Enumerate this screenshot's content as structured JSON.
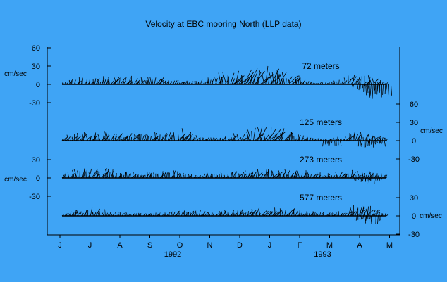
{
  "chart_data": {
    "type": "stick-plot",
    "title": "Velocity at EBC mooring North (LLP data)",
    "colors": {
      "background": "#3fa4f5",
      "ink": "#000000"
    },
    "x_months": [
      "J",
      "J",
      "A",
      "S",
      "O",
      "N",
      "D",
      "J",
      "F",
      "M",
      "A",
      "M"
    ],
    "year_labels": [
      {
        "text": "1992",
        "under_month_index": 4
      },
      {
        "text": "1993",
        "under_month_index": 9
      }
    ],
    "unit_label": "cm/sec",
    "series": [
      {
        "name": "72 meters",
        "axis_side": "left",
        "ticks": [
          60,
          30,
          0,
          -30
        ],
        "right_ticks": [],
        "envelope_cm_s": [
          5,
          10,
          14,
          12,
          14,
          16,
          13,
          12,
          18,
          8,
          6,
          6,
          10,
          18,
          22,
          26,
          28,
          30,
          30,
          20,
          10,
          5,
          4,
          8,
          15,
          18,
          14,
          4
        ],
        "southward_events": [
          {
            "month_pos": 10.0,
            "peak_cm_s": -10
          },
          {
            "month_pos": 10.4,
            "peak_cm_s": -24
          },
          {
            "month_pos": 10.75,
            "peak_cm_s": -22
          }
        ]
      },
      {
        "name": "125 meters",
        "axis_side": "right",
        "ticks": [],
        "right_ticks": [
          60,
          30,
          0,
          -30
        ],
        "envelope_cm_s": [
          6,
          12,
          16,
          14,
          15,
          15,
          12,
          10,
          14,
          16,
          22,
          10,
          6,
          6,
          10,
          14,
          20,
          25,
          22,
          15,
          8,
          4,
          3,
          6,
          12,
          14,
          10,
          4
        ],
        "southward_events": [
          {
            "month_pos": 9.05,
            "peak_cm_s": -10
          },
          {
            "month_pos": 10.25,
            "peak_cm_s": -12
          },
          {
            "month_pos": 10.55,
            "peak_cm_s": -10
          }
        ]
      },
      {
        "name": "273 meters",
        "axis_side": "left",
        "ticks": [
          30,
          0,
          -30
        ],
        "right_ticks": [],
        "envelope_cm_s": [
          6,
          14,
          18,
          16,
          14,
          12,
          10,
          10,
          12,
          12,
          10,
          8,
          8,
          8,
          10,
          12,
          14,
          16,
          16,
          14,
          12,
          10,
          8,
          10,
          14,
          12,
          10,
          5
        ],
        "southward_events": [
          {
            "month_pos": 10.1,
            "peak_cm_s": -8
          },
          {
            "month_pos": 10.45,
            "peak_cm_s": -10
          }
        ]
      },
      {
        "name": "577 meters",
        "axis_side": "right",
        "ticks": [],
        "right_ticks": [
          30,
          0,
          -30
        ],
        "envelope_cm_s": [
          4,
          10,
          14,
          12,
          8,
          6,
          5,
          5,
          6,
          8,
          10,
          10,
          8,
          8,
          10,
          12,
          14,
          14,
          14,
          12,
          10,
          8,
          6,
          8,
          16,
          18,
          14,
          6
        ],
        "southward_events": [
          {
            "month_pos": 10.1,
            "peak_cm_s": -8
          },
          {
            "month_pos": 10.45,
            "peak_cm_s": -14
          }
        ]
      }
    ]
  }
}
